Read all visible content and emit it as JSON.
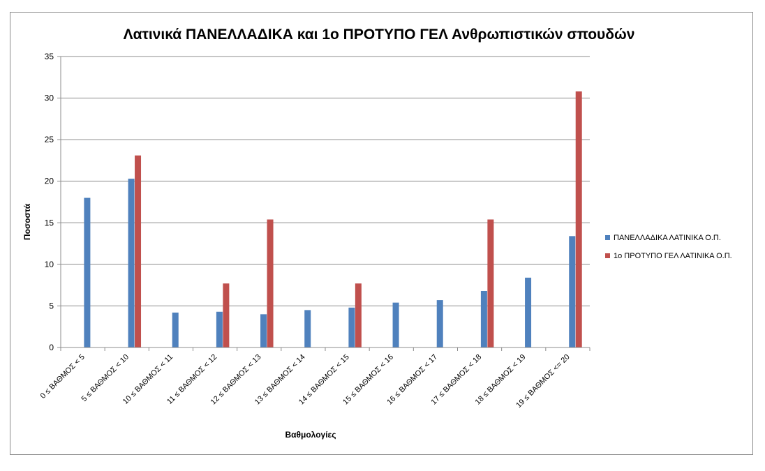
{
  "chart_data": {
    "type": "bar",
    "title": "Λατινικά ΠΑΝΕΛΛΑΔΙΚΑ και 1ο ΠΡΟΤΥΠΟ ΓΕΛ Ανθρωπιστικών σπουδών",
    "xlabel": "Βαθμολογίες",
    "ylabel": "Ποσοστά",
    "ylim": [
      0,
      35
    ],
    "yticks": [
      "0",
      "5",
      "10",
      "15",
      "20",
      "25",
      "30",
      "35"
    ],
    "grid": true,
    "legend_position": "right",
    "categories": [
      "0 ≤ ΒΑΘΜΟΣ < 5",
      "5 ≤ ΒΑΘΜΟΣ < 10",
      "10 ≤ ΒΑΘΜΟΣ < 11",
      "11 ≤ ΒΑΘΜΟΣ < 12",
      "12 ≤ ΒΑΘΜΟΣ < 13",
      "13 ≤ ΒΑΘΜΟΣ < 14",
      "14 ≤ ΒΑΘΜΟΣ < 15",
      "15 ≤ ΒΑΘΜΟΣ < 16",
      "16 ≤ ΒΑΘΜΟΣ < 17",
      "17 ≤ ΒΑΘΜΟΣ < 18",
      "18 ≤ ΒΑΘΜΟΣ < 19",
      "19 ≤ ΒΑΘΜΟΣ <= 20"
    ],
    "series": [
      {
        "name": "ΠΑΝΕΛΛΑΔΙΚΑ ΛΑΤΙΝΙΚΑ Ο.Π.",
        "color": "#4f81bd",
        "values": [
          18.0,
          20.3,
          4.2,
          4.3,
          4.0,
          4.5,
          4.8,
          5.4,
          5.7,
          6.8,
          8.4,
          13.4
        ]
      },
      {
        "name": "1ο ΠΡΟΤΥΠΟ ΓΕΛ ΛΑΤΙΝΙΚΑ Ο.Π.",
        "color": "#c0504d",
        "values": [
          0,
          23.1,
          0,
          7.7,
          15.4,
          0,
          7.7,
          0,
          0,
          15.4,
          0,
          30.8
        ]
      }
    ]
  }
}
